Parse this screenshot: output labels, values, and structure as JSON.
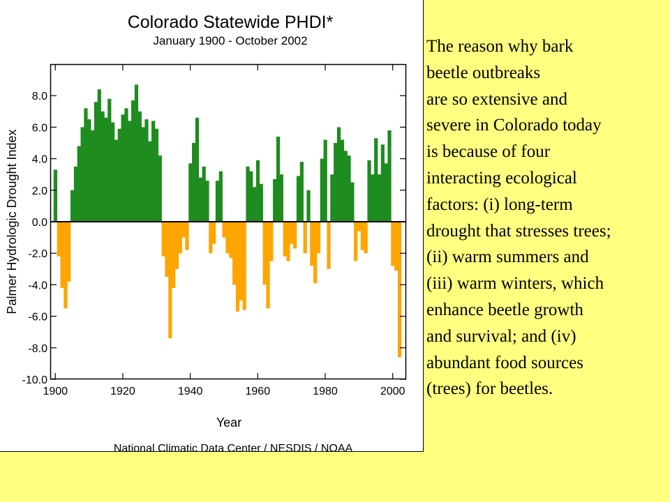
{
  "chart_data": {
    "type": "bar",
    "title": "Colorado Statewide PHDI*",
    "subtitle": "January 1900 - October 2002",
    "xlabel": "Year",
    "ylabel": "Palmer Hydrologic Drought Index",
    "credit": "National Climatic Data Center / NESDIS / NOAA",
    "xlim": [
      1898.5,
      2004
    ],
    "ylim": [
      -10,
      10
    ],
    "x_ticks": [
      "1900",
      "1920",
      "1940",
      "1960",
      "1980",
      "2000"
    ],
    "y_ticks": [
      "8.0",
      "6.0",
      "4.0",
      "2.0",
      "0.0",
      "-2.0",
      "-4.0",
      "-6.0",
      "-8.0",
      "-10.0"
    ],
    "colors": {
      "positive": "#1e8c1e",
      "negative": "#ffa500",
      "zero_line": "#000000"
    },
    "x": [
      1900,
      1901,
      1902,
      1903,
      1904,
      1905,
      1906,
      1907,
      1908,
      1909,
      1910,
      1911,
      1912,
      1913,
      1914,
      1915,
      1916,
      1917,
      1918,
      1919,
      1920,
      1921,
      1922,
      1923,
      1924,
      1925,
      1926,
      1927,
      1928,
      1929,
      1930,
      1931,
      1932,
      1933,
      1934,
      1935,
      1936,
      1937,
      1938,
      1939,
      1940,
      1941,
      1942,
      1943,
      1944,
      1945,
      1946,
      1947,
      1948,
      1949,
      1950,
      1951,
      1952,
      1953,
      1954,
      1955,
      1956,
      1957,
      1958,
      1959,
      1960,
      1961,
      1962,
      1963,
      1964,
      1965,
      1966,
      1967,
      1968,
      1969,
      1970,
      1971,
      1972,
      1973,
      1974,
      1975,
      1976,
      1977,
      1978,
      1979,
      1980,
      1981,
      1982,
      1983,
      1984,
      1985,
      1986,
      1987,
      1988,
      1989,
      1990,
      1991,
      1992,
      1993,
      1994,
      1995,
      1996,
      1997,
      1998,
      1999,
      2000,
      2001,
      2002
    ],
    "series": [
      {
        "values": [
          3.3,
          -2.2,
          -4.2,
          -5.5,
          -3.8,
          2.0,
          3.5,
          4.8,
          6.0,
          7.2,
          6.5,
          5.8,
          7.6,
          8.4,
          7.0,
          6.6,
          7.8,
          6.3,
          5.2,
          5.9,
          6.8,
          7.2,
          6.4,
          7.7,
          8.7,
          7.0,
          6.0,
          6.5,
          5.1,
          6.4,
          5.9,
          4.2,
          -2.2,
          -3.5,
          -7.4,
          -4.2,
          -3.0,
          -2.0,
          -1.0,
          -1.8,
          3.7,
          5.0,
          6.6,
          2.8,
          3.5,
          2.6,
          -2.0,
          -1.4,
          2.6,
          3.2,
          -1.0,
          -2.0,
          -2.3,
          -4.0,
          -5.7,
          -5.0,
          -5.6,
          3.5,
          3.2,
          2.2,
          3.9,
          2.4,
          -4.0,
          -5.5,
          -2.5,
          2.7,
          5.4,
          3.0,
          -2.2,
          -2.5,
          -1.4,
          -1.7,
          2.9,
          3.8,
          -2.0,
          2.0,
          -2.8,
          -3.9,
          -2.0,
          4.0,
          5.2,
          -3.0,
          3.0,
          5.0,
          6.0,
          5.2,
          4.5,
          4.2,
          2.5,
          -2.5,
          -0.6,
          -1.8,
          -2.0,
          3.9,
          3.0,
          5.3,
          3.0,
          4.9,
          3.7,
          5.8,
          -2.8,
          -3.1,
          -8.6
        ]
      }
    ]
  },
  "caption": {
    "text": "The reason why bark\nbeetle outbreaks\nare so extensive  and\nsevere  in Colorado today\nis  because of four\ninteracting ecological\nfactors:  (i) long-term\ndrought that stresses  trees;\n(ii) warm summers  and\n(iii) warm winters, which\nenhance  beetle growth\nand survival;  and (iv)\nabundant  food sources\n(trees)  for beetles."
  }
}
